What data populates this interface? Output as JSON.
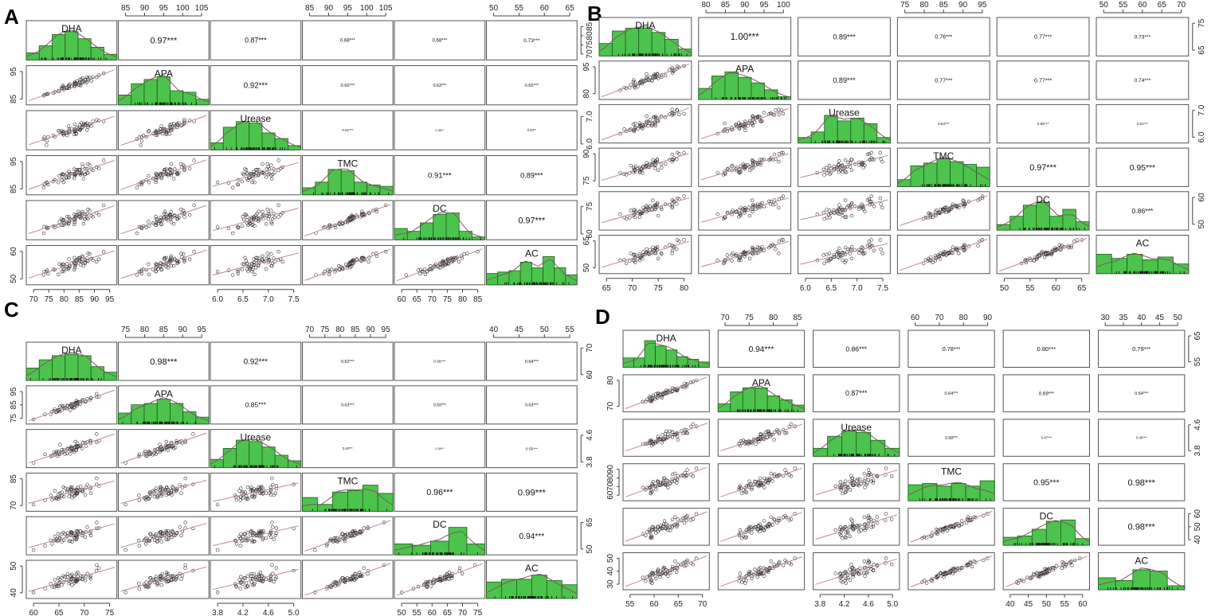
{
  "figure": {
    "variables": [
      "DHA",
      "APA",
      "Urease",
      "TMC",
      "DC",
      "AC"
    ],
    "panels": [
      {
        "id": "A",
        "letter": "A",
        "correlations": [
          {
            "row": 0,
            "col": 1,
            "text": "0.97***",
            "r": 0.97
          },
          {
            "row": 0,
            "col": 2,
            "text": "0.87***",
            "r": 0.87
          },
          {
            "row": 0,
            "col": 3,
            "text": "0.68***",
            "r": 0.68
          },
          {
            "row": 0,
            "col": 4,
            "text": "0.68***",
            "r": 0.68
          },
          {
            "row": 0,
            "col": 5,
            "text": "0.73***",
            "r": 0.73
          },
          {
            "row": 1,
            "col": 2,
            "text": "0.92***",
            "r": 0.92
          },
          {
            "row": 1,
            "col": 3,
            "text": "0.66***",
            "r": 0.66
          },
          {
            "row": 1,
            "col": 4,
            "text": "0.63***",
            "r": 0.63
          },
          {
            "row": 1,
            "col": 5,
            "text": "0.65***",
            "r": 0.65
          },
          {
            "row": 2,
            "col": 3,
            "text": "0.51***",
            "r": 0.51
          },
          {
            "row": 2,
            "col": 4,
            "text": "0.36**",
            "r": 0.36
          },
          {
            "row": 2,
            "col": 5,
            "text": "0.40**",
            "r": 0.4
          },
          {
            "row": 3,
            "col": 4,
            "text": "0.91***",
            "r": 0.91
          },
          {
            "row": 3,
            "col": 5,
            "text": "0.89***",
            "r": 0.89
          },
          {
            "row": 4,
            "col": 5,
            "text": "0.97***",
            "r": 0.97
          }
        ],
        "ranges": [
          [
            68,
            96
          ],
          [
            80,
            108
          ],
          [
            5.7,
            7.8
          ],
          [
            83,
            108
          ],
          [
            56,
            86
          ],
          [
            44,
            70
          ]
        ],
        "ticks": [
          [
            "70",
            "75",
            "80",
            "85",
            "90",
            "95"
          ],
          [
            "85",
            "90",
            "95",
            "100",
            "105"
          ],
          [
            "6.0",
            "6.5",
            "7.0",
            "7.5"
          ],
          [
            "85",
            "90",
            "95",
            "100",
            "105"
          ],
          [
            "60",
            "65",
            "70",
            "75",
            "80",
            "85"
          ],
          [
            "50",
            "55",
            "60",
            "65"
          ]
        ],
        "right_ticks": [
          [
            "70",
            "75",
            "80",
            "85"
          ],
          [
            "85",
            "95"
          ],
          [
            "6.0",
            "7.0"
          ],
          [
            "85",
            "95"
          ],
          [
            "60",
            "75"
          ],
          [
            "50",
            "60"
          ]
        ],
        "histograms": [
          [
            0.25,
            0.5,
            0.9,
            1.0,
            0.75,
            0.45,
            0.2
          ],
          [
            0.35,
            0.75,
            0.9,
            1.0,
            0.5,
            0.45,
            0.2
          ],
          [
            0.25,
            0.8,
            1.0,
            0.95,
            0.6,
            0.4,
            0.15
          ],
          [
            0.25,
            0.45,
            0.9,
            0.85,
            0.45,
            0.35,
            0.3
          ],
          [
            0.4,
            0.3,
            0.6,
            0.9,
            0.95,
            0.3,
            0.1
          ],
          [
            0.4,
            0.45,
            0.5,
            0.8,
            0.6,
            1.0,
            0.6,
            0.35
          ]
        ]
      },
      {
        "id": "B",
        "letter": "B",
        "correlations": [
          {
            "row": 0,
            "col": 1,
            "text": "1.00***",
            "r": 1.0
          },
          {
            "row": 0,
            "col": 2,
            "text": "0.89***",
            "r": 0.89
          },
          {
            "row": 0,
            "col": 3,
            "text": "0.76***",
            "r": 0.76
          },
          {
            "row": 0,
            "col": 4,
            "text": "0.77***",
            "r": 0.77
          },
          {
            "row": 0,
            "col": 5,
            "text": "0.73***",
            "r": 0.73
          },
          {
            "row": 1,
            "col": 2,
            "text": "0.89***",
            "r": 0.89
          },
          {
            "row": 1,
            "col": 3,
            "text": "0.77***",
            "r": 0.77
          },
          {
            "row": 1,
            "col": 4,
            "text": "0.77***",
            "r": 0.77
          },
          {
            "row": 1,
            "col": 5,
            "text": "0.74***",
            "r": 0.74
          },
          {
            "row": 2,
            "col": 3,
            "text": "0.54***",
            "r": 0.54
          },
          {
            "row": 2,
            "col": 4,
            "text": "0.56***",
            "r": 0.56
          },
          {
            "row": 2,
            "col": 5,
            "text": "0.51***",
            "r": 0.51
          },
          {
            "row": 3,
            "col": 4,
            "text": "0.97***",
            "r": 0.97
          },
          {
            "row": 3,
            "col": 5,
            "text": "0.95***",
            "r": 0.95
          },
          {
            "row": 4,
            "col": 5,
            "text": "0.86***",
            "r": 0.86
          }
        ],
        "ranges": [
          [
            62,
            84
          ],
          [
            74,
            102
          ],
          [
            5.7,
            7.6
          ],
          [
            70,
            99
          ],
          [
            48,
            68
          ],
          [
            47,
            73
          ]
        ],
        "ticks": [
          [
            "65",
            "70",
            "75",
            "80"
          ],
          [
            "80",
            "85",
            "90",
            "95",
            "100"
          ],
          [
            "6.0",
            "6.5",
            "7.0",
            "7.5"
          ],
          [
            "75",
            "80",
            "85",
            "90",
            "95"
          ],
          [
            "50",
            "55",
            "60",
            "65"
          ],
          [
            "50",
            "55",
            "60",
            "65",
            "70"
          ]
        ],
        "right_ticks": [
          [
            "65",
            "75"
          ],
          [
            "80",
            "95"
          ],
          [
            "6.0",
            "7.0"
          ],
          [
            "75",
            "90"
          ],
          [
            "50",
            "60"
          ],
          [
            "50",
            "65"
          ]
        ],
        "histograms": [
          [
            0.45,
            0.9,
            1.0,
            1.0,
            0.85,
            0.6,
            0.25
          ],
          [
            0.4,
            0.85,
            1.0,
            0.8,
            0.6,
            0.35,
            0.1
          ],
          [
            0.2,
            0.4,
            1.0,
            0.8,
            0.9,
            0.7,
            0.2
          ],
          [
            0.25,
            0.75,
            0.85,
            1.0,
            0.9,
            0.8,
            0.7
          ],
          [
            0.2,
            0.5,
            0.9,
            1.0,
            0.5,
            0.75,
            0.3
          ],
          [
            0.7,
            0.55,
            0.7,
            0.5,
            0.6,
            0.35
          ]
        ]
      },
      {
        "id": "C",
        "letter": "C",
        "correlations": [
          {
            "row": 0,
            "col": 1,
            "text": "0.98***",
            "r": 0.98
          },
          {
            "row": 0,
            "col": 2,
            "text": "0.92***",
            "r": 0.92
          },
          {
            "row": 0,
            "col": 3,
            "text": "0.62***",
            "r": 0.62
          },
          {
            "row": 0,
            "col": 4,
            "text": "0.56***",
            "r": 0.56
          },
          {
            "row": 0,
            "col": 5,
            "text": "0.64***",
            "r": 0.64
          },
          {
            "row": 1,
            "col": 2,
            "text": "0.85***",
            "r": 0.85
          },
          {
            "row": 1,
            "col": 3,
            "text": "0.63***",
            "r": 0.63
          },
          {
            "row": 1,
            "col": 4,
            "text": "0.59***",
            "r": 0.59
          },
          {
            "row": 1,
            "col": 5,
            "text": "0.63***",
            "r": 0.63
          },
          {
            "row": 2,
            "col": 3,
            "text": "0.40***",
            "r": 0.4
          },
          {
            "row": 2,
            "col": 4,
            "text": "0.30**",
            "r": 0.3
          },
          {
            "row": 2,
            "col": 5,
            "text": "0.55***",
            "r": 0.55
          },
          {
            "row": 3,
            "col": 4,
            "text": "0.96***",
            "r": 0.96
          },
          {
            "row": 3,
            "col": 5,
            "text": "0.99***",
            "r": 0.99
          },
          {
            "row": 4,
            "col": 5,
            "text": "0.94***",
            "r": 0.94
          }
        ],
        "ranges": [
          [
            59,
            77
          ],
          [
            72,
            97
          ],
          [
            3.7,
            5.2
          ],
          [
            66,
            97
          ],
          [
            45,
            80
          ],
          [
            37,
            57
          ]
        ],
        "ticks": [
          [
            "60",
            "65",
            "70",
            "75"
          ],
          [
            "75",
            "80",
            "85",
            "90",
            "95"
          ],
          [
            "3.8",
            "4.2",
            "4.6",
            "5.0"
          ],
          [
            "70",
            "75",
            "80",
            "85",
            "90",
            "95"
          ],
          [
            "50",
            "55",
            "60",
            "65",
            "70",
            "75"
          ],
          [
            "40",
            "45",
            "50",
            "55"
          ]
        ],
        "right_ticks": [
          [
            "60",
            "70"
          ],
          [
            "75",
            "85",
            "95"
          ],
          [
            "3.8",
            "4.6"
          ],
          [
            "70",
            "85"
          ],
          [
            "50",
            "65"
          ],
          [
            "40",
            "50"
          ]
        ],
        "histograms": [
          [
            0.45,
            0.75,
            0.9,
            0.95,
            0.9,
            0.5,
            0.3
          ],
          [
            0.4,
            0.7,
            0.75,
            0.9,
            0.75,
            0.45,
            0.25
          ],
          [
            0.3,
            0.7,
            1.0,
            0.95,
            0.75,
            0.45,
            0.25
          ],
          [
            0.5,
            0.25,
            0.7,
            0.75,
            0.95,
            0.65
          ],
          [
            0.4,
            0.35,
            0.5,
            1.0,
            0.4
          ],
          [
            0.6,
            0.7,
            0.7,
            0.85,
            0.65,
            0.5
          ]
        ]
      },
      {
        "id": "D",
        "letter": "D",
        "correlations": [
          {
            "row": 0,
            "col": 1,
            "text": "0.94***",
            "r": 0.94
          },
          {
            "row": 0,
            "col": 2,
            "text": "0.86***",
            "r": 0.86
          },
          {
            "row": 0,
            "col": 3,
            "text": "0.78***",
            "r": 0.78
          },
          {
            "row": 0,
            "col": 4,
            "text": "0.80***",
            "r": 0.8
          },
          {
            "row": 0,
            "col": 5,
            "text": "0.79***",
            "r": 0.79
          },
          {
            "row": 1,
            "col": 2,
            "text": "0.87***",
            "r": 0.87
          },
          {
            "row": 1,
            "col": 3,
            "text": "0.64***",
            "r": 0.64
          },
          {
            "row": 1,
            "col": 4,
            "text": "0.69***",
            "r": 0.69
          },
          {
            "row": 1,
            "col": 5,
            "text": "0.64***",
            "r": 0.64
          },
          {
            "row": 2,
            "col": 3,
            "text": "0.58***",
            "r": 0.58
          },
          {
            "row": 2,
            "col": 4,
            "text": "0.47***",
            "r": 0.47
          },
          {
            "row": 2,
            "col": 5,
            "text": "0.46***",
            "r": 0.46
          },
          {
            "row": 3,
            "col": 4,
            "text": "0.95***",
            "r": 0.95
          },
          {
            "row": 3,
            "col": 5,
            "text": "0.98***",
            "r": 0.98
          },
          {
            "row": 4,
            "col": 5,
            "text": "0.98***",
            "r": 0.98
          }
        ],
        "ranges": [
          [
            51,
            74
          ],
          [
            67,
            90
          ],
          [
            3.6,
            5.1
          ],
          [
            59,
            95
          ],
          [
            37,
            63
          ],
          [
            26,
            53
          ]
        ],
        "ticks": [
          [
            "55",
            "60",
            "65",
            "70"
          ],
          [
            "70",
            "75",
            "80",
            "85"
          ],
          [
            "3.8",
            "4.2",
            "4.6",
            "5.0"
          ],
          [
            "60",
            "70",
            "80",
            "90"
          ],
          [
            "40",
            "45",
            "50",
            "55",
            "60"
          ],
          [
            "30",
            "35",
            "40",
            "45",
            "50"
          ]
        ],
        "right_ticks": [
          [
            "55",
            "65"
          ],
          [
            "70",
            "80"
          ],
          [
            "3.8",
            "4.6"
          ],
          [
            "60",
            "70",
            "80",
            "90"
          ],
          [
            "40",
            "50",
            "60"
          ],
          [
            "30",
            "40",
            "50"
          ]
        ],
        "histograms": [
          [
            0.35,
            0.35,
            1.0,
            0.8,
            0.65,
            0.4,
            0.3,
            0.2
          ],
          [
            0.3,
            0.75,
            0.9,
            0.9,
            0.6,
            0.45,
            0.25
          ],
          [
            0.3,
            0.75,
            0.95,
            0.9,
            0.6,
            0.3
          ],
          [
            0.6,
            0.65,
            0.55,
            0.65,
            0.55,
            0.75
          ],
          [
            0.3,
            0.35,
            0.6,
            0.9,
            0.95,
            0.25
          ],
          [
            0.45,
            0.35,
            0.75,
            0.7,
            0.15
          ]
        ]
      }
    ]
  }
}
